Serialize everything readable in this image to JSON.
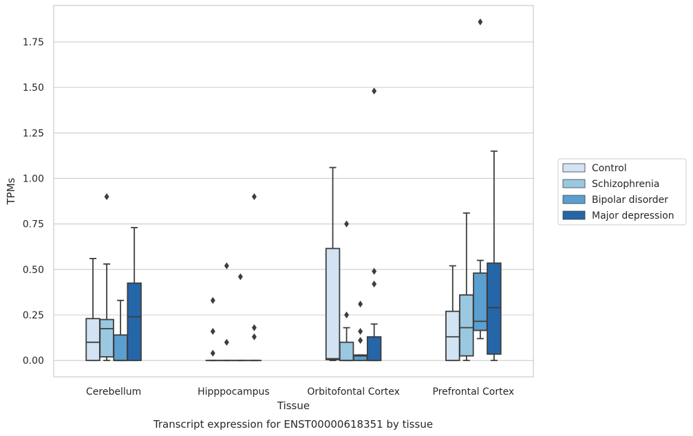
{
  "chart_data": {
    "type": "box",
    "xlabel": "Tissue",
    "ylabel": "TPMs",
    "caption": "Transcript expression for ENST00000618351 by tissue",
    "ylim": [
      -0.09,
      1.95
    ],
    "yticks": [
      0.0,
      0.25,
      0.5,
      0.75,
      1.0,
      1.25,
      1.5,
      1.75
    ],
    "ytick_labels": [
      "0.00",
      "0.25",
      "0.50",
      "0.75",
      "1.00",
      "1.25",
      "1.50",
      "1.75"
    ],
    "grid": "horizontal",
    "legend_position": "right",
    "categories": [
      "Cerebellum",
      "Hipppocampus",
      "Orbitofontal Cortex",
      "Prefrontal Cortex"
    ],
    "series": [
      {
        "name": "Control",
        "color": "#d2e3f3",
        "boxes": [
          {
            "whislo": 0.0,
            "q1": 0.0,
            "med": 0.1,
            "q3": 0.23,
            "whishi": 0.56,
            "fliers": []
          },
          {
            "whislo": 0.0,
            "q1": 0.0,
            "med": 0.0,
            "q3": 0.0,
            "whishi": 0.0,
            "fliers": [
              0.04,
              0.16,
              0.33
            ]
          },
          {
            "whislo": 0.0,
            "q1": 0.005,
            "med": 0.01,
            "q3": 0.615,
            "whishi": 1.06,
            "fliers": []
          },
          {
            "whislo": 0.0,
            "q1": 0.0,
            "med": 0.13,
            "q3": 0.27,
            "whishi": 0.52,
            "fliers": []
          }
        ]
      },
      {
        "name": "Schizophrenia",
        "color": "#9ac8e0",
        "boxes": [
          {
            "whislo": 0.0,
            "q1": 0.02,
            "med": 0.175,
            "q3": 0.225,
            "whishi": 0.53,
            "fliers": [
              0.9
            ]
          },
          {
            "whislo": 0.0,
            "q1": 0.0,
            "med": 0.0,
            "q3": 0.0,
            "whishi": 0.0,
            "fliers": [
              0.1,
              0.52
            ]
          },
          {
            "whislo": 0.0,
            "q1": 0.0,
            "med": 0.0,
            "q3": 0.1,
            "whishi": 0.18,
            "fliers": [
              0.25,
              0.75
            ]
          },
          {
            "whislo": 0.0,
            "q1": 0.025,
            "med": 0.18,
            "q3": 0.36,
            "whishi": 0.81,
            "fliers": []
          }
        ]
      },
      {
        "name": "Bipolar disorder",
        "color": "#5a9fcf",
        "boxes": [
          {
            "whislo": 0.0,
            "q1": 0.0,
            "med": 0.0,
            "q3": 0.14,
            "whishi": 0.33,
            "fliers": []
          },
          {
            "whislo": 0.0,
            "q1": 0.0,
            "med": 0.0,
            "q3": 0.0,
            "whishi": 0.0,
            "fliers": [
              0.46
            ]
          },
          {
            "whislo": 0.0,
            "q1": 0.0,
            "med": 0.025,
            "q3": 0.03,
            "whishi": 0.03,
            "fliers": [
              0.11,
              0.16,
              0.31
            ]
          },
          {
            "whislo": 0.12,
            "q1": 0.165,
            "med": 0.215,
            "q3": 0.48,
            "whishi": 0.55,
            "fliers": [
              1.86
            ]
          }
        ]
      },
      {
        "name": "Major depression",
        "color": "#2566a8",
        "boxes": [
          {
            "whislo": 0.0,
            "q1": 0.0,
            "med": 0.24,
            "q3": 0.425,
            "whishi": 0.73,
            "fliers": []
          },
          {
            "whislo": 0.0,
            "q1": 0.0,
            "med": 0.0,
            "q3": 0.0,
            "whishi": 0.0,
            "fliers": [
              0.13,
              0.18,
              0.9
            ]
          },
          {
            "whislo": 0.0,
            "q1": 0.0,
            "med": 0.0,
            "q3": 0.13,
            "whishi": 0.2,
            "fliers": [
              0.42,
              0.49,
              1.48
            ]
          },
          {
            "whislo": 0.0,
            "q1": 0.035,
            "med": 0.29,
            "q3": 0.535,
            "whishi": 1.15,
            "fliers": []
          }
        ]
      }
    ]
  }
}
